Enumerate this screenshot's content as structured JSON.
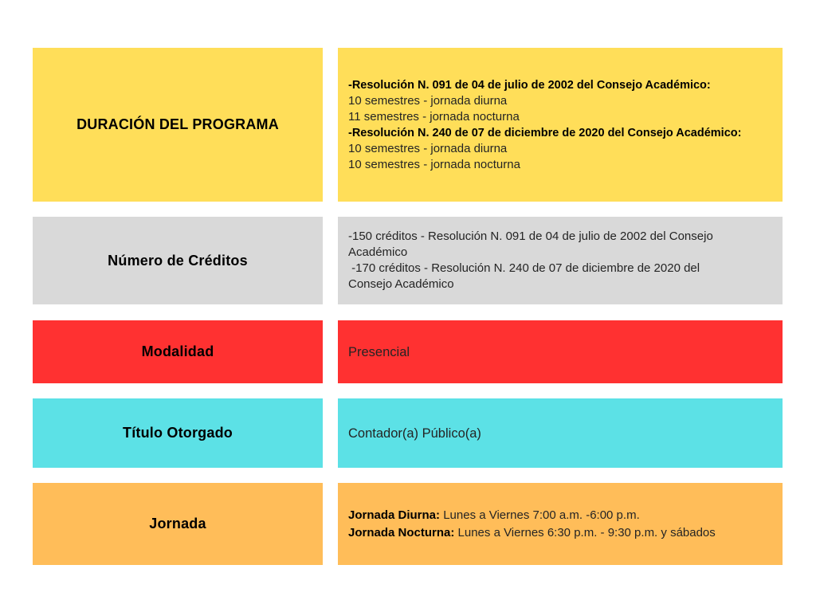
{
  "page": {
    "background": "#ffffff",
    "text_color": "#1a1a1a"
  },
  "table": {
    "rows": [
      {
        "label": "DURACIÓN DEL PROGRAMA",
        "color": "#FFDE59",
        "content": {
          "res1_title": "-Resolución N. 091 de 04 de julio de 2002 del Consejo Académico:",
          "res1_line1": "10 semestres - jornada diurna",
          "res1_line2": "11 semestres - jornada nocturna",
          "res2_title": "-Resolución N. 240 de 07 de diciembre de 2020 del Consejo Académico:",
          "res2_line1": "10 semestres - jornada diurna",
          "res2_line2": "10 semestres - jornada nocturna"
        }
      },
      {
        "label": "Número de Créditos",
        "color": "#D9D9D9",
        "content": {
          "line1": "-150 créditos - Resolución N. 091 de 04 de julio de 2002 del Consejo Académico",
          "line2": " -170 créditos - Resolución N. 240 de 07 de diciembre de 2020 del Consejo Académico"
        }
      },
      {
        "label": "Modalidad",
        "color": "#FF3131",
        "content": {
          "value": "Presencial"
        }
      },
      {
        "label": "Título Otorgado",
        "color": "#5CE1E6",
        "content": {
          "value": "Contador(a) Público(a)"
        }
      },
      {
        "label": "Jornada",
        "color": "#FFBD59",
        "content": {
          "diurna_label": "Jornada Diurna:",
          "diurna_text": " Lunes a Viernes 7:00 a.m. -6:00 p.m.",
          "nocturna_label": "Jornada Nocturna:",
          "nocturna_text": " Lunes a Viernes 6:30 p.m. - 9:30 p.m. y sábados"
        }
      }
    ]
  }
}
